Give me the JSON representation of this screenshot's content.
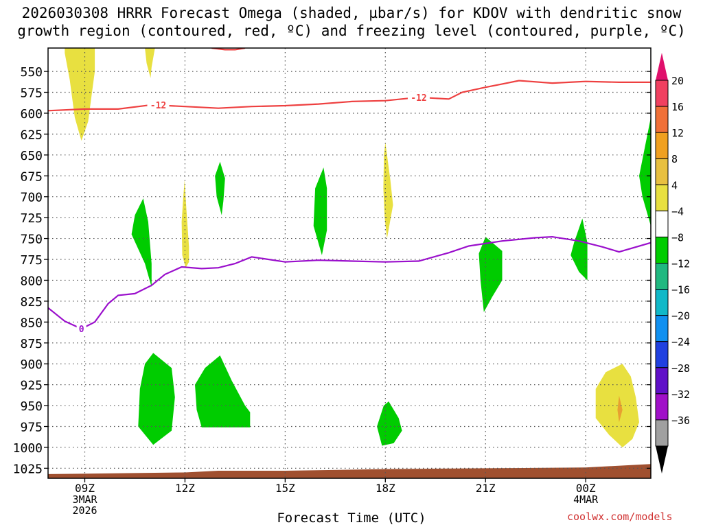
{
  "chart_data": {
    "type": "time-height",
    "title_line1": "2026030308 HRRR Forecast Omega (shaded, µbar/s) for KDOV with dendritic snow",
    "title_line2": "growth region (contoured, red, ºC) and freezing level (contoured, purple, ºC)",
    "xlabel": "Forecast Time (UTC)",
    "credit": "coolwx.com/models",
    "x_range_hours": [
      7.9,
      25.95
    ],
    "y_range_mb": [
      522,
      1037
    ],
    "y_ticks": [
      550,
      575,
      600,
      625,
      650,
      675,
      700,
      725,
      750,
      775,
      800,
      825,
      850,
      875,
      900,
      925,
      950,
      975,
      1000,
      1025
    ],
    "y_tick_labels": [
      "550",
      "575",
      "600",
      "625",
      "650",
      "675",
      "700",
      "725",
      "750",
      "775",
      "800",
      "825",
      "850",
      "875",
      "900",
      "925",
      "950",
      "975",
      "1000",
      "1025"
    ],
    "x_ticks": [
      {
        "hour": 9,
        "lines": [
          "09Z",
          "3MAR",
          "2026"
        ]
      },
      {
        "hour": 12,
        "lines": [
          "12Z"
        ]
      },
      {
        "hour": 15,
        "lines": [
          "15Z"
        ]
      },
      {
        "hour": 18,
        "lines": [
          "18Z"
        ]
      },
      {
        "hour": 21,
        "lines": [
          "21Z"
        ]
      },
      {
        "hour": 24,
        "lines": [
          "00Z",
          "4MAR"
        ]
      }
    ],
    "colorbar": {
      "labels": [
        "20",
        "16",
        "12",
        "8",
        "4",
        "−4",
        "−8",
        "−12",
        "−16",
        "−20",
        "−24",
        "−28",
        "−32",
        "−36"
      ],
      "colors": [
        "#f04060",
        "#f07038",
        "#f0a020",
        "#e8c040",
        "#e8e040",
        "#ffffff",
        "#00cc00",
        "#20b880",
        "#10b8c8",
        "#1090f0",
        "#2040e0",
        "#6010c8",
        "#a010c8",
        "#a0a0a0"
      ],
      "top_arrow_color": "#e0106c",
      "bottom_arrow_color": "#000000"
    },
    "freezing_level_line": {
      "label": "0",
      "color": "#9a0fcc",
      "points": [
        [
          7.9,
          833
        ],
        [
          8.4,
          849
        ],
        [
          8.9,
          858
        ],
        [
          9.3,
          850
        ],
        [
          9.7,
          828
        ],
        [
          10.0,
          818
        ],
        [
          10.5,
          816
        ],
        [
          11.0,
          806
        ],
        [
          11.4,
          793
        ],
        [
          11.9,
          784
        ],
        [
          12.5,
          786
        ],
        [
          13.0,
          785
        ],
        [
          13.5,
          780
        ],
        [
          14.0,
          772
        ],
        [
          15.0,
          778
        ],
        [
          16.0,
          776
        ],
        [
          17.0,
          777
        ],
        [
          18.0,
          778
        ],
        [
          19.0,
          777
        ],
        [
          19.9,
          767
        ],
        [
          20.5,
          759
        ],
        [
          21.5,
          753
        ],
        [
          22.5,
          749
        ],
        [
          23.0,
          748
        ],
        [
          23.8,
          753
        ],
        [
          24.5,
          760
        ],
        [
          25.0,
          766
        ],
        [
          25.95,
          755
        ]
      ]
    },
    "dgz_line": {
      "label": "-12",
      "color": "#ee4040",
      "points": [
        [
          7.9,
          597
        ],
        [
          9.0,
          595
        ],
        [
          10.0,
          595
        ],
        [
          11.0,
          590
        ],
        [
          12.0,
          592
        ],
        [
          13.0,
          594
        ],
        [
          14.0,
          592
        ],
        [
          15.0,
          591
        ],
        [
          16.0,
          589
        ],
        [
          17.0,
          586
        ],
        [
          18.0,
          585
        ],
        [
          19.0,
          581
        ],
        [
          19.9,
          583
        ],
        [
          20.3,
          575
        ],
        [
          21.0,
          569
        ],
        [
          21.5,
          565
        ],
        [
          22.0,
          561
        ],
        [
          23.0,
          564
        ],
        [
          23.5,
          563
        ],
        [
          24.0,
          562
        ],
        [
          25.0,
          563
        ],
        [
          25.95,
          563
        ]
      ]
    },
    "dgz_top_segment": {
      "color": "#ee4040",
      "points": [
        [
          12.8,
          522
        ],
        [
          13.2,
          524
        ],
        [
          13.5,
          524
        ],
        [
          13.8,
          522
        ]
      ]
    },
    "shaded_regions": [
      {
        "level": "4 to 8",
        "color": "#e8e040",
        "points": [
          [
            8.4,
            522
          ],
          [
            9.3,
            522
          ],
          [
            9.3,
            550
          ],
          [
            9.2,
            580
          ],
          [
            9.1,
            610
          ],
          [
            8.9,
            633
          ],
          [
            8.7,
            605
          ],
          [
            8.55,
            560
          ],
          [
            8.4,
            528
          ]
        ]
      },
      {
        "level": "4 to 8",
        "color": "#e8e040",
        "points": [
          [
            10.8,
            522
          ],
          [
            11.1,
            522
          ],
          [
            11.0,
            545
          ],
          [
            10.97,
            558
          ],
          [
            10.85,
            540
          ]
        ]
      },
      {
        "level": "4 to 8",
        "color": "#e8e040",
        "points": [
          [
            11.99,
            680
          ],
          [
            12.04,
            714
          ],
          [
            12.12,
            760
          ],
          [
            12.12,
            778
          ],
          [
            12.02,
            785
          ],
          [
            11.92,
            770
          ],
          [
            11.9,
            730
          ],
          [
            11.95,
            700
          ]
        ]
      },
      {
        "level": "4 to 8",
        "color": "#e8e040",
        "points": [
          [
            18.0,
            635
          ],
          [
            18.15,
            680
          ],
          [
            18.23,
            710
          ],
          [
            18.05,
            750
          ],
          [
            17.98,
            725
          ],
          [
            17.94,
            690
          ],
          [
            17.96,
            650
          ]
        ]
      },
      {
        "level": "4 to 8",
        "color": "#e8e040",
        "points": [
          [
            25.1,
            900
          ],
          [
            25.35,
            915
          ],
          [
            25.5,
            940
          ],
          [
            25.6,
            970
          ],
          [
            25.4,
            990
          ],
          [
            25.1,
            1000
          ],
          [
            24.7,
            985
          ],
          [
            24.3,
            965
          ],
          [
            24.3,
            930
          ],
          [
            24.6,
            910
          ]
        ]
      },
      {
        "level": "8 to 12",
        "color": "#e8a030",
        "points": [
          [
            25.0,
            938
          ],
          [
            25.1,
            955
          ],
          [
            25.0,
            970
          ],
          [
            24.95,
            955
          ]
        ]
      },
      {
        "level": "-4 to -8",
        "color": "#00cc00",
        "points": [
          [
            10.75,
            702
          ],
          [
            10.9,
            730
          ],
          [
            11.0,
            780
          ],
          [
            11.0,
            808
          ],
          [
            10.8,
            780
          ],
          [
            10.4,
            745
          ],
          [
            10.5,
            722
          ]
        ]
      },
      {
        "level": "-4 to -8",
        "color": "#00cc00",
        "points": [
          [
            13.05,
            658
          ],
          [
            13.2,
            678
          ],
          [
            13.15,
            705
          ],
          [
            13.1,
            722
          ],
          [
            12.95,
            700
          ],
          [
            12.9,
            675
          ]
        ]
      },
      {
        "level": "-4 to -8",
        "color": "#00cc00",
        "points": [
          [
            16.15,
            665
          ],
          [
            16.25,
            690
          ],
          [
            16.25,
            740
          ],
          [
            16.1,
            770
          ],
          [
            15.85,
            735
          ],
          [
            15.9,
            690
          ]
        ]
      },
      {
        "level": "-4 to -8",
        "color": "#00cc00",
        "points": [
          [
            21.0,
            748
          ],
          [
            21.5,
            765
          ],
          [
            21.5,
            800
          ],
          [
            21.2,
            820
          ],
          [
            20.95,
            838
          ],
          [
            20.85,
            800
          ],
          [
            20.8,
            768
          ]
        ]
      },
      {
        "level": "-4 to -8",
        "color": "#00cc00",
        "points": [
          [
            23.9,
            726
          ],
          [
            24.05,
            755
          ],
          [
            24.05,
            800
          ],
          [
            23.8,
            790
          ],
          [
            23.55,
            770
          ],
          [
            23.65,
            755
          ]
        ]
      },
      {
        "level": "-4 to -8",
        "color": "#00cc00",
        "points": [
          [
            25.95,
            605
          ],
          [
            25.95,
            735
          ],
          [
            25.7,
            700
          ],
          [
            25.6,
            675
          ],
          [
            25.8,
            635
          ]
        ]
      },
      {
        "level": "-4 to -8",
        "color": "#00cc00",
        "points": [
          [
            11.05,
            887
          ],
          [
            11.6,
            905
          ],
          [
            11.7,
            940
          ],
          [
            11.6,
            980
          ],
          [
            11.05,
            997
          ],
          [
            10.6,
            975
          ],
          [
            10.65,
            930
          ],
          [
            10.8,
            900
          ]
        ]
      },
      {
        "level": "-4 to -8",
        "color": "#00cc00",
        "points": [
          [
            13.05,
            890
          ],
          [
            13.4,
            920
          ],
          [
            13.8,
            950
          ],
          [
            13.95,
            958
          ],
          [
            13.95,
            976
          ],
          [
            12.5,
            976
          ],
          [
            12.35,
            955
          ],
          [
            12.3,
            925
          ],
          [
            12.6,
            905
          ]
        ]
      },
      {
        "level": "-4 to -8",
        "color": "#00cc00",
        "points": [
          [
            18.1,
            945
          ],
          [
            18.4,
            965
          ],
          [
            18.5,
            980
          ],
          [
            18.25,
            995
          ],
          [
            17.9,
            998
          ],
          [
            17.75,
            975
          ],
          [
            17.95,
            950
          ]
        ]
      }
    ],
    "ground": {
      "color": "#a05030",
      "points": [
        [
          7.9,
          1032
        ],
        [
          12.0,
          1030
        ],
        [
          13.0,
          1028
        ],
        [
          15.0,
          1028
        ],
        [
          18.0,
          1026
        ],
        [
          21.0,
          1025
        ],
        [
          24.0,
          1024
        ],
        [
          25.95,
          1020
        ]
      ]
    }
  }
}
